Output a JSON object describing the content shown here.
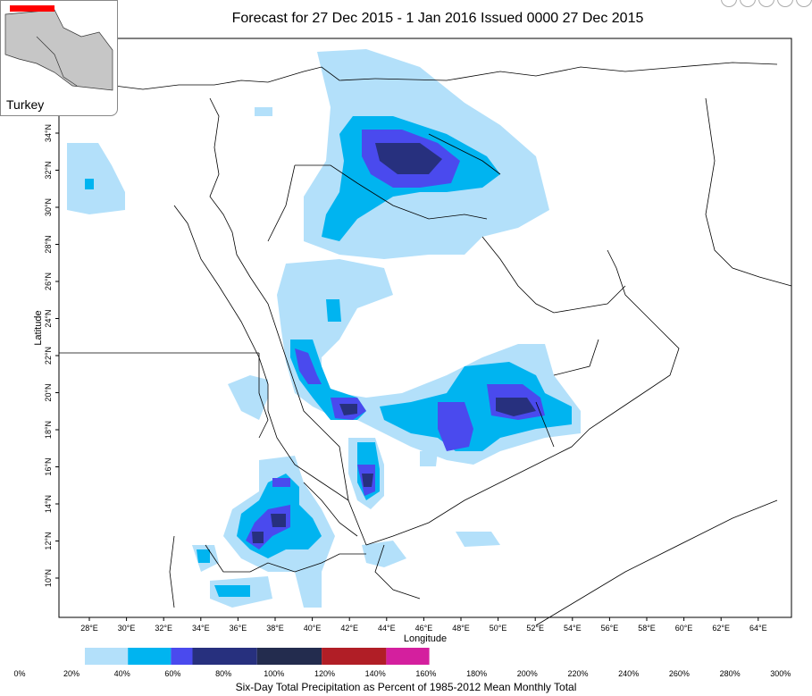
{
  "title": "Forecast for 27 Dec 2015 - 1 Jan 2016 Issued 0000 27 Dec 2015",
  "inset": {
    "label": "Turkey"
  },
  "axes": {
    "xlabel": "Longitude",
    "ylabel": "Latitude",
    "x_ticks": [
      "28°E",
      "30°E",
      "32°E",
      "34°E",
      "36°E",
      "38°E",
      "40°E",
      "42°E",
      "44°E",
      "46°E",
      "48°E",
      "50°E",
      "52°E",
      "54°E",
      "56°E",
      "58°E",
      "60°E",
      "62°E",
      "64°E"
    ],
    "y_ticks": [
      "10°N",
      "12°N",
      "14°N",
      "16°N",
      "18°N",
      "20°N",
      "22°N",
      "24°N",
      "26°N",
      "28°N",
      "30°N",
      "32°N",
      "34°N"
    ]
  },
  "legend": {
    "title": "Six-Day Total Precipitation as Percent of 1985-2012 Mean Monthly Total",
    "labels": [
      "0%",
      "20%",
      "40%",
      "60%",
      "80%",
      "100%",
      "120%",
      "140%",
      "160%",
      "180%",
      "200%",
      "220%",
      "240%",
      "260%",
      "280%",
      "300%"
    ],
    "colors": [
      "#ffffff",
      "#b3e0fa",
      "#00b4f0",
      "#2e8cff",
      "#4a4aee",
      "#2a3aa8",
      "#27307e",
      "#232c4e",
      "#26263e",
      "#b11e26",
      "#d41f6e",
      "#d41f9e"
    ]
  }
}
